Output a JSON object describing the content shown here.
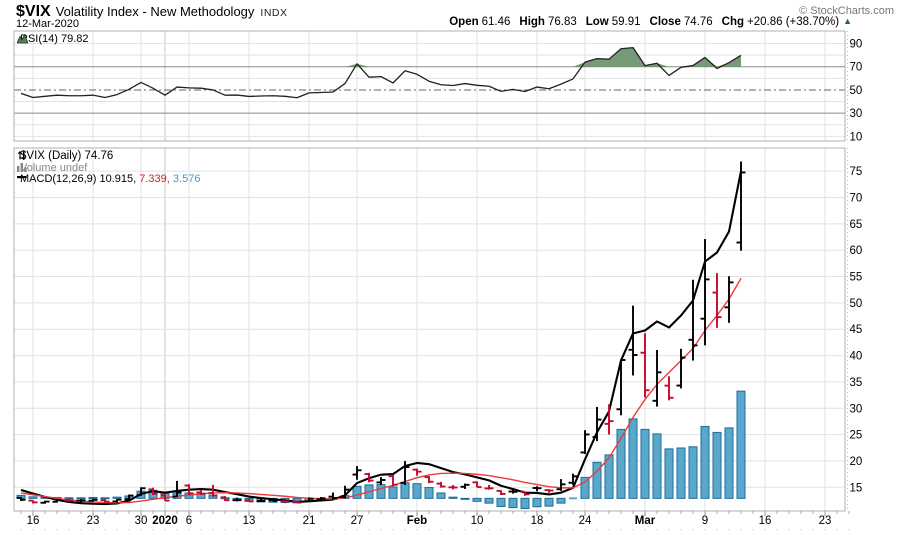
{
  "header": {
    "symbol": "$VIX",
    "name": "Volatility Index - New Methodology",
    "exchange": "INDX",
    "date": "12-Mar-2020",
    "copyright": "© StockCharts.com"
  },
  "quote": {
    "open_label": "Open",
    "open": "61.46",
    "high_label": "High",
    "high": "76.83",
    "low_label": "Low",
    "low": "59.91",
    "close_label": "Close",
    "close": "74.76",
    "chg_label": "Chg",
    "chg": "+20.86 (+38.70%)",
    "direction": "up",
    "arrow": "▲"
  },
  "legend": {
    "rsi": "RSI(14) 79.82",
    "price": "$VIX (Daily) 74.76",
    "volume": "Volume undef",
    "macd_name": "MACD(12,26,9)",
    "macd_value": "10.915,",
    "signal_value": "7.339,",
    "hist_value": "3.576"
  },
  "colors": {
    "up": "#000000",
    "down": "#c4082e",
    "macd_line": "#000000",
    "signal_line": "#ee3a3a",
    "hist_fill": "#58a7cd",
    "hist_stroke": "#1d6d99",
    "rsi_line": "#222222",
    "rsi_fill": "#688f68",
    "grid": "#e2e2e2",
    "grid_dark": "#8a8a8a",
    "grid_year": "#c4c4c4",
    "border": "#b0b0b0",
    "axis_text": "#000000",
    "chg_up": "#157615",
    "legend_signal": "#cc2222",
    "legend_hist": "#3ba0c4"
  },
  "chart_data": {
    "type": "ohlc",
    "title": "$VIX (Daily)",
    "last_close": 74.76,
    "dates": [
      "Dec 13",
      "Dec 16",
      "Dec 17",
      "Dec 18",
      "Dec 19",
      "Dec 20",
      "Dec 23",
      "Dec 24",
      "Dec 26",
      "Dec 27",
      "Dec 30",
      "Dec 31",
      "Jan 2",
      "Jan 3",
      "Jan 6",
      "Jan 7",
      "Jan 8",
      "Jan 9",
      "Jan 10",
      "Jan 13",
      "Jan 14",
      "Jan 15",
      "Jan 16",
      "Jan 17",
      "Jan 21",
      "Jan 22",
      "Jan 23",
      "Jan 24",
      "Jan 27",
      "Jan 28",
      "Jan 29",
      "Jan 30",
      "Jan 31",
      "Feb 3",
      "Feb 4",
      "Feb 5",
      "Feb 6",
      "Feb 7",
      "Feb 10",
      "Feb 11",
      "Feb 12",
      "Feb 13",
      "Feb 14",
      "Feb 18",
      "Feb 19",
      "Feb 20",
      "Feb 21",
      "Feb 24",
      "Feb 25",
      "Feb 26",
      "Feb 27",
      "Feb 28",
      "Mar 2",
      "Mar 3",
      "Mar 4",
      "Mar 5",
      "Mar 6",
      "Mar 9",
      "Mar 10",
      "Mar 11",
      "Mar 12"
    ],
    "open": [
      13.0,
      12.47,
      12.07,
      12.25,
      12.55,
      12.46,
      12.47,
      12.56,
      12.32,
      12.7,
      13.5,
      14.6,
      13.46,
      13.24,
      15.34,
      14.03,
      13.9,
      13.1,
      12.55,
      12.52,
      12.41,
      12.54,
      12.35,
      12.25,
      12.34,
      12.71,
      13.22,
      13.16,
      17.42,
      17.51,
      15.93,
      17.1,
      15.85,
      18.35,
      16.93,
      15.7,
      15.0,
      15.1,
      15.94,
      14.78,
      14.33,
      14.2,
      14.18,
      14.86,
      14.46,
      14.63,
      15.86,
      21.61,
      24.54,
      27.04,
      29.81,
      41.1,
      40.54,
      31.42,
      34.3,
      34.31,
      43.0,
      47.0,
      51.96,
      49.16,
      61.46
    ],
    "high": [
      13.16,
      12.56,
      12.45,
      12.75,
      12.8,
      12.75,
      12.84,
      12.78,
      12.78,
      13.62,
      15.0,
      14.92,
      13.72,
      16.2,
      15.59,
      14.55,
      15.46,
      13.33,
      13.04,
      12.85,
      12.88,
      12.93,
      12.52,
      12.43,
      13.09,
      13.16,
      14.01,
      15.29,
      19.02,
      17.76,
      16.94,
      17.39,
      19.99,
      18.55,
      17.14,
      16.03,
      15.42,
      15.72,
      16.13,
      15.45,
      14.41,
      14.65,
      14.21,
      15.21,
      14.64,
      16.56,
      17.59,
      25.84,
      30.25,
      30.75,
      39.16,
      49.48,
      44.25,
      41.06,
      36.07,
      41.28,
      54.39,
      62.12,
      55.66,
      55.06,
      76.83
    ],
    "low": [
      12.4,
      11.93,
      11.88,
      12.09,
      12.22,
      12.01,
      12.26,
      12.11,
      12.08,
      12.39,
      13.36,
      13.54,
      12.42,
      13.13,
      13.54,
      13.52,
      13.2,
      12.4,
      12.31,
      12.22,
      12.21,
      12.31,
      11.99,
      11.96,
      12.25,
      12.36,
      12.7,
      12.87,
      16.43,
      15.93,
      15.45,
      15.19,
      15.43,
      17.19,
      15.77,
      14.93,
      14.59,
      14.68,
      14.98,
      14.55,
      13.54,
      13.8,
      13.38,
      14.24,
      13.96,
      14.32,
      15.41,
      21.31,
      23.77,
      25.01,
      28.67,
      36.22,
      32.04,
      30.31,
      31.51,
      33.77,
      39.06,
      41.94,
      45.27,
      46.21,
      59.91
    ],
    "close": [
      12.63,
      12.14,
      12.29,
      12.58,
      12.5,
      12.51,
      12.61,
      12.28,
      12.65,
      13.43,
      14.82,
      13.78,
      12.47,
      14.02,
      13.85,
      13.79,
      13.45,
      12.54,
      12.56,
      12.32,
      12.39,
      12.42,
      12.32,
      12.1,
      12.85,
      12.91,
      12.98,
      14.56,
      18.23,
      16.28,
      16.39,
      15.49,
      18.84,
      17.97,
      16.05,
      15.15,
      14.96,
      15.47,
      15.04,
      14.81,
      13.74,
      14.15,
      13.68,
      14.83,
      14.38,
      15.56,
      17.08,
      25.03,
      27.85,
      27.56,
      39.16,
      40.11,
      33.42,
      36.82,
      31.99,
      39.62,
      41.94,
      54.46,
      47.3,
      53.9,
      74.76
    ],
    "bar_dir": [
      "u",
      "d",
      "u",
      "u",
      "d",
      "u",
      "u",
      "d",
      "u",
      "u",
      "u",
      "d",
      "d",
      "u",
      "d",
      "d",
      "d",
      "d",
      "u",
      "d",
      "u",
      "u",
      "d",
      "d",
      "u",
      "u",
      "u",
      "u",
      "u",
      "d",
      "u",
      "d",
      "u",
      "d",
      "d",
      "d",
      "d",
      "u",
      "d",
      "d",
      "d",
      "u",
      "d",
      "u",
      "d",
      "u",
      "u",
      "u",
      "u",
      "d",
      "u",
      "u",
      "d",
      "u",
      "d",
      "u",
      "u",
      "u",
      "d",
      "u",
      "u"
    ],
    "macd": {
      "label": "MACD(12,26,9)",
      "line": [
        0.28,
        0.16,
        0.05,
        -0.05,
        -0.12,
        -0.16,
        -0.18,
        -0.19,
        -0.17,
        -0.08,
        0.15,
        0.24,
        0.19,
        0.25,
        0.29,
        0.31,
        0.29,
        0.21,
        0.14,
        0.06,
        0.01,
        -0.03,
        -0.07,
        -0.12,
        -0.1,
        -0.07,
        -0.04,
        0.1,
        0.51,
        0.67,
        0.79,
        0.81,
        1.08,
        1.18,
        1.14,
        1.01,
        0.88,
        0.8,
        0.7,
        0.6,
        0.42,
        0.31,
        0.19,
        0.18,
        0.13,
        0.19,
        0.35,
        1.3,
        2.2,
        2.9,
        4.6,
        5.5,
        5.6,
        5.9,
        5.7,
        6.1,
        6.6,
        7.9,
        8.2,
        8.9,
        10.915
      ],
      "signal": [
        0.18,
        0.12,
        0.06,
        0.0,
        -0.05,
        -0.09,
        -0.12,
        -0.14,
        -0.15,
        -0.14,
        -0.09,
        -0.03,
        0.02,
        0.07,
        0.11,
        0.15,
        0.18,
        0.19,
        0.18,
        0.16,
        0.13,
        0.1,
        0.07,
        0.03,
        0.0,
        -0.01,
        -0.02,
        0.01,
        0.11,
        0.22,
        0.33,
        0.43,
        0.56,
        0.69,
        0.78,
        0.83,
        0.84,
        0.83,
        0.8,
        0.76,
        0.69,
        0.62,
        0.53,
        0.46,
        0.39,
        0.35,
        0.35,
        0.55,
        0.9,
        1.35,
        2.0,
        2.7,
        3.3,
        3.8,
        4.2,
        4.6,
        5.0,
        5.6,
        6.1,
        6.65,
        7.339
      ],
      "hist": [
        0.1,
        0.05,
        0.04,
        0.03,
        0.02,
        0.02,
        0.03,
        0.02,
        0.04,
        0.08,
        0.24,
        0.27,
        0.17,
        0.18,
        0.18,
        0.16,
        0.11,
        0.02,
        -0.04,
        -0.1,
        -0.12,
        -0.13,
        -0.14,
        -0.15,
        -0.1,
        -0.06,
        -0.02,
        0.09,
        0.4,
        0.45,
        0.46,
        0.38,
        0.52,
        0.49,
        0.36,
        0.18,
        0.04,
        -0.03,
        -0.1,
        -0.16,
        -0.27,
        -0.31,
        -0.34,
        -0.28,
        -0.26,
        -0.16,
        0.0,
        0.7,
        1.2,
        1.45,
        2.3,
        2.65,
        2.3,
        2.15,
        1.65,
        1.68,
        1.72,
        2.4,
        2.2,
        2.35,
        3.576
      ],
      "last_values": [
        10.915,
        7.339,
        3.576
      ],
      "overlay_base_price": 12.9,
      "overlay_price_per_unit": 5.69
    },
    "rsi": {
      "label": "RSI(14)",
      "last": 79.82,
      "overbought": 70,
      "midline": 50,
      "oversold": 30,
      "axis_ticks": [
        90,
        70,
        50,
        30,
        10
      ],
      "ylim": [
        6,
        100.8
      ],
      "values": [
        47,
        43.5,
        44.5,
        45.5,
        45,
        45,
        45.5,
        43.5,
        46,
        50.5,
        56.5,
        51.5,
        45.5,
        52.5,
        51.8,
        51.5,
        50,
        45.5,
        45.6,
        44.4,
        44.8,
        45,
        44.5,
        43.3,
        47.5,
        47.8,
        48.2,
        55.5,
        72.5,
        61,
        61.5,
        56,
        66.5,
        63.5,
        57.5,
        54.5,
        53.8,
        55.5,
        54,
        53.2,
        48.8,
        50.5,
        48.7,
        52.5,
        51,
        55,
        59.5,
        74,
        77,
        76.5,
        85.5,
        86.5,
        71,
        73,
        62.5,
        69.5,
        71,
        78,
        68.5,
        73.5,
        79.82
      ]
    },
    "y_axis": {
      "ticks": [
        15,
        20,
        25,
        30,
        35,
        40,
        45,
        50,
        55,
        60,
        65,
        70,
        75
      ],
      "ylim": [
        10.5,
        79.4
      ]
    },
    "x_ticks": [
      {
        "i": 1,
        "label": "16"
      },
      {
        "i": 6,
        "label": "23"
      },
      {
        "i": 10,
        "label": "30"
      },
      {
        "i": 12,
        "label": "2020",
        "bold": true,
        "year": true
      },
      {
        "i": 14,
        "label": "6"
      },
      {
        "i": 19,
        "label": "13"
      },
      {
        "i": 24,
        "label": "21"
      },
      {
        "i": 28,
        "label": "27"
      },
      {
        "i": 33,
        "label": "Feb",
        "bold": true
      },
      {
        "i": 38,
        "label": "10"
      },
      {
        "i": 43,
        "label": "18"
      },
      {
        "i": 47,
        "label": "24"
      },
      {
        "i": 52,
        "label": "Mar",
        "bold": true
      },
      {
        "i": 57,
        "label": "9"
      },
      {
        "i": 62,
        "label": "16"
      },
      {
        "i": 67,
        "label": "23"
      }
    ],
    "x_slot_count": 69,
    "grid": true,
    "legend_position": "top-left"
  }
}
